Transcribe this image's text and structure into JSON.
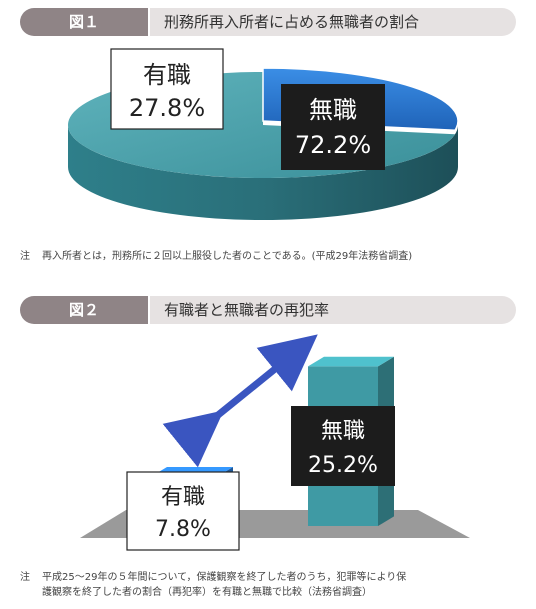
{
  "figures": [
    {
      "number": "図１",
      "title": "刑務所再入所者に占める無職者の割合",
      "note_label": "注",
      "note_lines": [
        "再入所者とは，刑務所に２回以上服役した者のことである。(平成29年法務省調査)"
      ]
    },
    {
      "number": "図２",
      "title": "有職者と無職者の再犯率",
      "note_label": "注",
      "note_lines": [
        "平成25～29年の５年間について，保護観察を終了した者のうち，犯罪等により保",
        "護観察を終了した者の割合（再犯率）を有職と無職で比較（法務省調査）"
      ]
    }
  ],
  "chart_data": [
    {
      "type": "pie",
      "title": "刑務所再入所者に占める無職者の割合",
      "slices": [
        {
          "label": "有職",
          "value": 27.8,
          "value_label": "27.8%",
          "color": "#2a7ad4"
        },
        {
          "label": "無職",
          "value": 72.2,
          "value_label": "72.2%",
          "color": "#3f9aa4"
        }
      ]
    },
    {
      "type": "bar",
      "title": "有職者と無職者の再犯率",
      "categories": [
        "有職",
        "無職"
      ],
      "values": [
        7.8,
        25.2
      ],
      "value_labels": [
        "7.8%",
        "25.2%"
      ],
      "colors": [
        "#2a7ad4",
        "#3f9aa4"
      ],
      "ylim": [
        0,
        30
      ]
    }
  ]
}
